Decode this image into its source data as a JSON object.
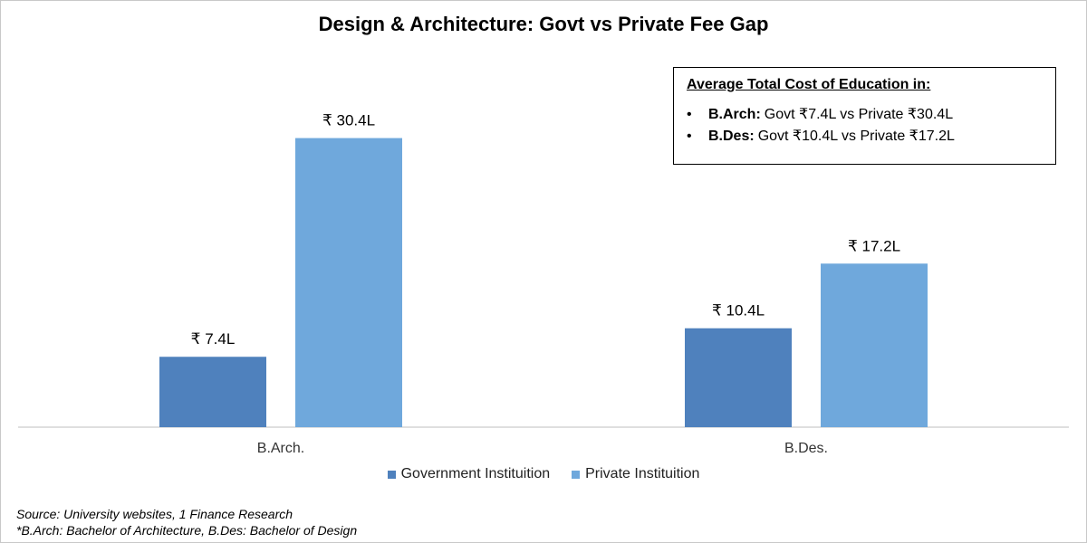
{
  "chart_data": {
    "type": "bar",
    "title": "Design & Architecture:  Govt vs Private Fee Gap",
    "categories": [
      "B.Arch.",
      "B.Des."
    ],
    "series": [
      {
        "name": "Government Instituition",
        "values": [
          7.4,
          10.4
        ],
        "labels": [
          "₹ 7.4L",
          "₹ 10.4L"
        ],
        "color": "#4f81bd"
      },
      {
        "name": "Private Instituition",
        "values": [
          30.4,
          17.2
        ],
        "labels": [
          "₹ 30.4L",
          "₹ 17.2L"
        ],
        "color": "#6fa8dc"
      }
    ],
    "ylim": [
      0,
      33.5
    ],
    "grid": false,
    "legend_position": "bottom",
    "xlabel": "",
    "ylabel": ""
  },
  "info_box": {
    "heading": "Average Total Cost of Education in:",
    "items": [
      {
        "bullet": "•",
        "label": "B.Arch:",
        "text": "Govt ₹7.4L vs Private ₹30.4L"
      },
      {
        "bullet": "•",
        "label": "B.Des:",
        "text": "Govt ₹10.4L vs Private ₹17.2L"
      }
    ]
  },
  "footnotes": {
    "source": "Source: University websites, 1 Finance Research",
    "abbreviations": "*B.Arch: Bachelor of Architecture, B.Des: Bachelor of Design"
  }
}
